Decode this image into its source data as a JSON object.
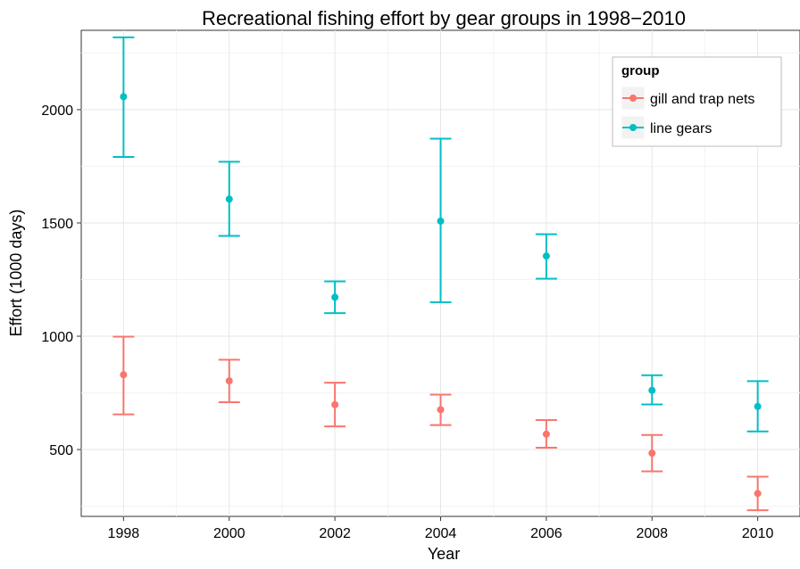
{
  "chart_data": {
    "type": "scatter",
    "title": "Recreational fishing effort by gear groups in 1998−2010",
    "xlabel": "Year",
    "ylabel": "Effort (1000 days)",
    "x_ticks": [
      "1998",
      "2000",
      "2002",
      "2004",
      "2006",
      "2008",
      "2010"
    ],
    "y_ticks": [
      500,
      1000,
      1500,
      2000
    ],
    "xlim": [
      1997.2,
      2010.8
    ],
    "ylim": [
      205,
      2350
    ],
    "grid": true,
    "legend": {
      "title": "group",
      "placement": "top-right"
    },
    "series": [
      {
        "name": "gill and trap nets",
        "color": "#f8766d",
        "points": [
          {
            "x": 1998,
            "y": 830,
            "low": 655,
            "high": 998
          },
          {
            "x": 2000,
            "y": 803,
            "low": 709,
            "high": 896
          },
          {
            "x": 2002,
            "y": 698,
            "low": 602,
            "high": 795
          },
          {
            "x": 2004,
            "y": 676,
            "low": 608,
            "high": 742
          },
          {
            "x": 2006,
            "y": 568,
            "low": 508,
            "high": 630
          },
          {
            "x": 2008,
            "y": 484,
            "low": 404,
            "high": 564
          },
          {
            "x": 2010,
            "y": 306,
            "low": 232,
            "high": 380
          }
        ]
      },
      {
        "name": "line gears",
        "color": "#00bfc4",
        "points": [
          {
            "x": 1998,
            "y": 2057,
            "low": 1791,
            "high": 2319
          },
          {
            "x": 2000,
            "y": 1605,
            "low": 1443,
            "high": 1770
          },
          {
            "x": 2002,
            "y": 1172,
            "low": 1102,
            "high": 1242
          },
          {
            "x": 2004,
            "y": 1508,
            "low": 1150,
            "high": 1872
          },
          {
            "x": 2006,
            "y": 1354,
            "low": 1254,
            "high": 1450
          },
          {
            "x": 2008,
            "y": 761,
            "low": 699,
            "high": 828
          },
          {
            "x": 2010,
            "y": 690,
            "low": 580,
            "high": 802
          }
        ]
      }
    ]
  }
}
